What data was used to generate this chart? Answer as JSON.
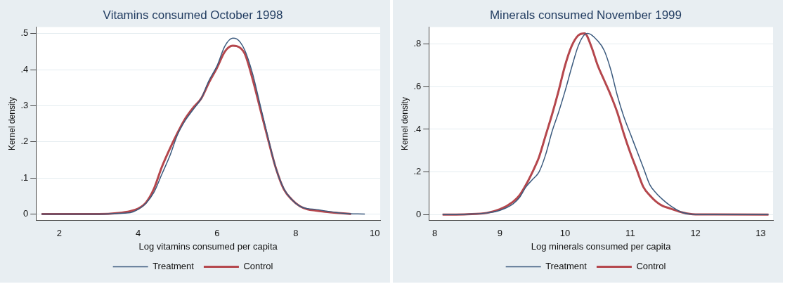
{
  "chart_data": [
    {
      "type": "line",
      "title": "Vitamins consumed October 1998",
      "xlabel": "Log vitamins consumed per capita",
      "ylabel": "Kernel density",
      "xlim": [
        1.41,
        10.14
      ],
      "xticks": [
        2,
        4,
        6,
        8,
        10
      ],
      "ylim": [
        -0.018,
        0.518
      ],
      "yticks": [
        0,
        {
          "value": 0.1,
          "label": ".1"
        },
        {
          "value": 0.2,
          "label": ".2"
        },
        {
          "value": 0.3,
          "label": ".3"
        },
        {
          "value": 0.4,
          "label": ".4"
        },
        {
          "value": 0.5,
          "label": ".5"
        }
      ],
      "grid": "y",
      "legend": "bottom",
      "marker": "none",
      "line_style": "solid",
      "series": [
        {
          "name": "Treatment",
          "color": "#3b5a7e",
          "x": [
            1.55,
            3,
            3.5,
            3.8,
            4,
            4.2,
            4.4,
            4.6,
            4.8,
            5,
            5.2,
            5.4,
            5.6,
            5.8,
            6,
            6.2,
            6.4,
            6.5,
            6.7,
            6.9,
            7.1,
            7.3,
            7.5,
            7.7,
            7.9,
            8.1,
            8.3,
            8.5,
            8.8,
            9.2,
            9.75
          ],
          "values": [
            0,
            0,
            0.002,
            0.004,
            0.013,
            0.03,
            0.06,
            0.11,
            0.16,
            0.22,
            0.26,
            0.29,
            0.32,
            0.37,
            0.41,
            0.465,
            0.487,
            0.485,
            0.455,
            0.39,
            0.3,
            0.21,
            0.125,
            0.07,
            0.04,
            0.022,
            0.015,
            0.013,
            0.008,
            0.002,
            0
          ]
        },
        {
          "name": "Control",
          "color": "#b5474d",
          "x": [
            1.55,
            3,
            3.5,
            3.8,
            4,
            4.2,
            4.4,
            4.6,
            4.8,
            5,
            5.2,
            5.4,
            5.6,
            5.8,
            6,
            6.2,
            6.4,
            6.5,
            6.7,
            6.9,
            7.1,
            7.3,
            7.5,
            7.7,
            7.9,
            8.1,
            8.3,
            8.5,
            8.8,
            9.4
          ],
          "values": [
            0,
            0,
            0.003,
            0.008,
            0.015,
            0.032,
            0.07,
            0.13,
            0.18,
            0.225,
            0.265,
            0.295,
            0.32,
            0.365,
            0.405,
            0.45,
            0.466,
            0.465,
            0.445,
            0.375,
            0.29,
            0.205,
            0.125,
            0.068,
            0.04,
            0.022,
            0.013,
            0.01,
            0.006,
            0
          ]
        }
      ]
    },
    {
      "type": "line",
      "title": "Minerals consumed November 1999",
      "xlabel": "Log minerals consumed per capita",
      "ylabel": "Kernel density",
      "xlim": [
        7.91,
        13.19
      ],
      "xticks": [
        8,
        9,
        10,
        11,
        12,
        13
      ],
      "ylim": [
        -0.028,
        0.88
      ],
      "yticks": [
        0,
        {
          "value": 0.2,
          "label": ".2"
        },
        {
          "value": 0.4,
          "label": ".4"
        },
        {
          "value": 0.6,
          "label": ".6"
        },
        {
          "value": 0.8,
          "label": ".8"
        }
      ],
      "grid": "y",
      "legend": "bottom",
      "marker": "none",
      "line_style": "solid",
      "series": [
        {
          "name": "Treatment",
          "color": "#3b5a7e",
          "x": [
            8.12,
            8.5,
            8.8,
            9,
            9.2,
            9.3,
            9.4,
            9.5,
            9.6,
            9.7,
            9.8,
            9.9,
            10,
            10.1,
            10.2,
            10.3,
            10.35,
            10.5,
            10.6,
            10.7,
            10.8,
            10.9,
            11,
            11.1,
            11.2,
            11.3,
            11.4,
            11.5,
            11.6,
            11.7,
            11.8,
            12,
            12.5,
            13.12
          ],
          "values": [
            0,
            0.002,
            0.008,
            0.02,
            0.05,
            0.08,
            0.13,
            0.165,
            0.2,
            0.28,
            0.39,
            0.48,
            0.58,
            0.69,
            0.79,
            0.845,
            0.85,
            0.815,
            0.77,
            0.68,
            0.56,
            0.46,
            0.38,
            0.3,
            0.22,
            0.14,
            0.1,
            0.07,
            0.045,
            0.025,
            0.01,
            0.001,
            0,
            0
          ]
        },
        {
          "name": "Control",
          "color": "#b5474d",
          "x": [
            8.12,
            8.5,
            8.8,
            9,
            9.2,
            9.3,
            9.4,
            9.5,
            9.6,
            9.7,
            9.8,
            9.9,
            10,
            10.1,
            10.2,
            10.3,
            10.4,
            10.5,
            10.6,
            10.7,
            10.8,
            10.9,
            11,
            11.1,
            11.2,
            11.3,
            11.4,
            11.5,
            11.6,
            11.8,
            12,
            13.12
          ],
          "values": [
            0,
            0.002,
            0.008,
            0.025,
            0.06,
            0.09,
            0.14,
            0.2,
            0.27,
            0.37,
            0.47,
            0.58,
            0.7,
            0.79,
            0.84,
            0.85,
            0.79,
            0.7,
            0.63,
            0.56,
            0.48,
            0.38,
            0.29,
            0.21,
            0.13,
            0.09,
            0.06,
            0.04,
            0.03,
            0.01,
            0.001,
            0
          ]
        }
      ]
    }
  ]
}
